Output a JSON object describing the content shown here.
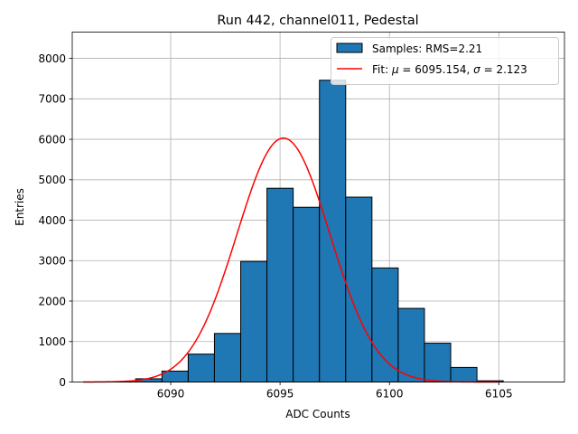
{
  "chart_data": {
    "type": "bar",
    "title": "Run 442, channel011, Pedestal",
    "xlabel": "ADC Counts",
    "ylabel": "Entries",
    "xlim": [
      6085.5,
      6108.0
    ],
    "ylim": [
      0,
      8650
    ],
    "xticks": [
      6090,
      6095,
      6100,
      6105
    ],
    "yticks": [
      0,
      1000,
      2000,
      3000,
      4000,
      5000,
      6000,
      7000,
      8000
    ],
    "grid": true,
    "legend_placement": "top-right",
    "histogram": {
      "name": "Samples: RMS=2.21",
      "bin_width": 1.2,
      "bin_edges": [
        6086.0,
        6087.2,
        6088.4,
        6089.6,
        6090.8,
        6092.0,
        6093.2,
        6094.4,
        6095.6,
        6096.8,
        6098.0,
        6099.2,
        6100.4,
        6101.6,
        6102.8,
        6104.0,
        6105.2,
        6106.4
      ],
      "counts": [
        0,
        2,
        80,
        270,
        690,
        1200,
        2980,
        4790,
        4320,
        7460,
        4570,
        2820,
        1820,
        960,
        360,
        30,
        0,
        0
      ],
      "fill_color": "#1f77b4",
      "edge_color": "#000000"
    },
    "fit": {
      "name": "Fit: μ = 6095.154, σ = 2.123",
      "legend_parts": [
        "Fit: ",
        "μ",
        " = 6095.154, ",
        "σ",
        " = 2.123"
      ],
      "mu": 6095.154,
      "sigma": 2.123,
      "amplitude": 6030,
      "x_range": [
        6086.0,
        6105.0
      ],
      "color": "#ff0000"
    },
    "legend_entries": [
      "Samples: RMS=2.21",
      "Fit: μ = 6095.154, σ = 2.123"
    ]
  }
}
